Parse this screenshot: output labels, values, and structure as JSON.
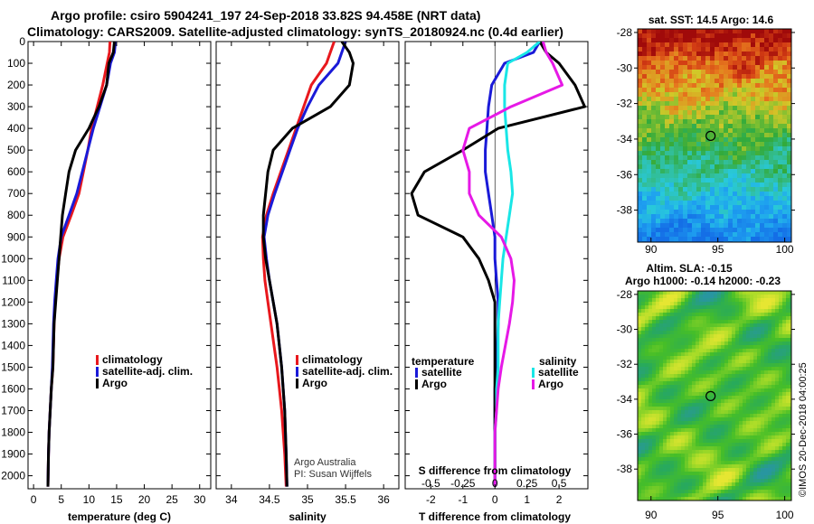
{
  "title": {
    "line1": "Argo profile: csiro 5904241_197 24-Sep-2018 33.82S 94.458E (NRT data)",
    "line2": "Climatology: CARS2009. Satellite-adjusted climatology: synTS_20180924.nc (0.4d earlier)"
  },
  "colors": {
    "climatology": "#e8181d",
    "satellite": "#1a1ad8",
    "argo": "#000000",
    "sat_salinity": "#19e6e6",
    "argo_salinity": "#e619e6"
  },
  "credit": {
    "line1": "Argo Australia",
    "line2": "PI: Susan Wijffels"
  },
  "watermark": "©IMOS 20-Dec-2018 04:00:25",
  "chart_data": [
    {
      "type": "line",
      "name": "temperature",
      "xlabel": "temperature (deg C)",
      "xlim": [
        -1,
        32
      ],
      "ylim": [
        2060,
        0
      ],
      "ylabel": "",
      "xticks": [
        0,
        5,
        10,
        15,
        20,
        25,
        30
      ],
      "yticks": [
        0,
        100,
        200,
        300,
        400,
        500,
        600,
        700,
        800,
        900,
        1000,
        1100,
        1200,
        1300,
        1400,
        1500,
        1600,
        1700,
        1800,
        1900,
        2000
      ],
      "legend": [
        "climatology",
        "satellite-adj. clim.",
        "Argo"
      ],
      "series": [
        {
          "name": "climatology",
          "color": "#e8181d",
          "x": [
            13.8,
            13.7,
            13.3,
            12.5,
            11.5,
            10.5,
            9.8,
            9.0,
            8.2,
            6.8,
            5.3,
            4.6,
            4.2,
            3.9,
            3.7,
            3.5,
            3.2,
            3.0,
            2.8,
            2.7,
            2.6
          ],
          "depth": [
            0,
            50,
            100,
            200,
            300,
            400,
            500,
            600,
            700,
            800,
            900,
            1000,
            1100,
            1200,
            1300,
            1500,
            1600,
            1700,
            1800,
            1900,
            2050
          ]
        },
        {
          "name": "satellite-adj. clim.",
          "color": "#1a1ad8",
          "x": [
            14.8,
            14.6,
            13.9,
            13.2,
            12.0,
            10.8,
            9.8,
            8.8,
            7.8,
            6.4,
            5.0,
            4.4,
            4.1,
            3.8,
            3.6,
            3.4,
            3.2,
            3.0,
            2.8,
            2.7,
            2.6
          ],
          "depth": [
            0,
            50,
            100,
            200,
            300,
            400,
            500,
            600,
            700,
            800,
            900,
            1000,
            1100,
            1200,
            1300,
            1500,
            1600,
            1700,
            1800,
            1900,
            2050
          ]
        },
        {
          "name": "Argo",
          "color": "#000000",
          "x": [
            14.6,
            14.4,
            13.6,
            13.2,
            11.8,
            10.0,
            7.6,
            6.4,
            5.8,
            5.2,
            4.9,
            4.6,
            4.3,
            4.0,
            3.7,
            3.5,
            3.2,
            3.0,
            2.8,
            2.7,
            2.6
          ],
          "depth": [
            0,
            50,
            100,
            200,
            300,
            400,
            500,
            600,
            700,
            800,
            900,
            1000,
            1100,
            1200,
            1300,
            1500,
            1600,
            1700,
            1800,
            1900,
            2050
          ]
        }
      ]
    },
    {
      "type": "line",
      "name": "salinity",
      "xlabel": "salinity",
      "xlim": [
        33.8,
        36.2
      ],
      "ylim": [
        2060,
        0
      ],
      "xticks": [
        34,
        34.5,
        35,
        35.5,
        36
      ],
      "xticklabels": [
        "34",
        "34.5",
        "35",
        "35.5",
        "36"
      ],
      "legend": [
        "climatology",
        "satellite-adj. clim.",
        "Argo"
      ],
      "series": [
        {
          "name": "climatology",
          "color": "#e8181d",
          "x": [
            35.35,
            35.3,
            35.25,
            35.05,
            34.95,
            34.85,
            34.75,
            34.65,
            34.55,
            34.46,
            34.41,
            34.42,
            34.44,
            34.48,
            34.52,
            34.6,
            34.63,
            34.66,
            34.68,
            34.7,
            34.72
          ],
          "depth": [
            0,
            50,
            100,
            200,
            300,
            400,
            500,
            600,
            700,
            800,
            900,
            1000,
            1100,
            1200,
            1300,
            1500,
            1600,
            1700,
            1800,
            1900,
            2050
          ]
        },
        {
          "name": "satellite-adj. clim.",
          "color": "#1a1ad8",
          "x": [
            35.5,
            35.45,
            35.4,
            35.15,
            35.0,
            34.87,
            34.77,
            34.67,
            34.57,
            34.48,
            34.43,
            34.46,
            34.5,
            34.55,
            34.6,
            34.66,
            34.68,
            34.7,
            34.71,
            34.72,
            34.73
          ],
          "depth": [
            0,
            50,
            100,
            200,
            300,
            400,
            500,
            600,
            700,
            800,
            900,
            1000,
            1100,
            1200,
            1300,
            1500,
            1600,
            1700,
            1800,
            1900,
            2050
          ]
        },
        {
          "name": "Argo",
          "color": "#000000",
          "x": [
            35.45,
            35.55,
            35.6,
            35.55,
            35.3,
            34.8,
            34.55,
            34.48,
            34.45,
            34.42,
            34.42,
            34.45,
            34.5,
            34.55,
            34.6,
            34.66,
            34.68,
            34.7,
            34.71,
            34.72,
            34.73
          ],
          "depth": [
            0,
            50,
            100,
            200,
            300,
            400,
            500,
            600,
            700,
            800,
            900,
            1000,
            1100,
            1200,
            1300,
            1500,
            1600,
            1700,
            1800,
            1900,
            2050
          ]
        }
      ]
    },
    {
      "type": "line",
      "name": "difference",
      "xlabel": "T difference from climatology",
      "xlabel_top": "S difference from climatology",
      "xlim": [
        -2.8,
        2.9
      ],
      "ylim": [
        2060,
        0
      ],
      "xticks": [
        -2,
        -1,
        0,
        1,
        2
      ],
      "s_ticks": [
        -0.5,
        -0.25,
        0,
        0.25,
        0.5
      ],
      "s_ticklabels": [
        "-0.5",
        "-0.25",
        "0",
        "0.25",
        "0.5"
      ],
      "s_scale": 4,
      "legend_group_left": {
        "title": "temperature",
        "items": [
          "satellite",
          "Argo"
        ]
      },
      "legend_group_right": {
        "title": "salinity",
        "items": [
          "satellite",
          "Argo"
        ]
      },
      "series": [
        {
          "name": "T satellite",
          "color": "#1a1ad8",
          "x": [
            1.4,
            1.2,
            0.3,
            -0.1,
            -0.2,
            -0.25,
            -0.3,
            -0.3,
            -0.2,
            -0.1,
            0.0,
            0.0,
            0.05,
            0.1,
            0.1,
            0.05,
            0.0,
            0.0,
            0.0,
            0.0,
            0.0
          ],
          "depth": [
            0,
            50,
            100,
            200,
            300,
            400,
            500,
            600,
            700,
            800,
            900,
            1000,
            1100,
            1200,
            1300,
            1500,
            1600,
            1700,
            1800,
            1900,
            2050
          ]
        },
        {
          "name": "T Argo",
          "color": "#000000",
          "x": [
            1.4,
            1.6,
            2.0,
            2.5,
            2.8,
            0.1,
            -1.0,
            -2.2,
            -2.6,
            -2.4,
            -1.0,
            -0.5,
            -0.2,
            0.0,
            0.0,
            0.0,
            0.0,
            0.0,
            0.0,
            0.0,
            0.0
          ],
          "depth": [
            0,
            50,
            100,
            200,
            300,
            400,
            500,
            600,
            700,
            800,
            900,
            1000,
            1100,
            1200,
            1300,
            1500,
            1600,
            1700,
            1800,
            1900,
            2050
          ]
        },
        {
          "name": "S satellite",
          "color": "#19e6e6",
          "x": [
            1.4,
            1.0,
            0.4,
            0.3,
            0.3,
            0.35,
            0.4,
            0.5,
            0.55,
            0.45,
            0.35,
            0.25,
            0.2,
            0.15,
            0.1,
            0.1,
            0.05,
            0.05,
            0.0,
            0.0,
            0.0
          ],
          "depth": [
            0,
            50,
            100,
            200,
            300,
            400,
            500,
            600,
            700,
            800,
            900,
            1000,
            1100,
            1200,
            1300,
            1500,
            1600,
            1700,
            1800,
            1900,
            2050
          ]
        },
        {
          "name": "S Argo",
          "color": "#e619e6",
          "x": [
            1.5,
            1.6,
            1.8,
            2.1,
            0.5,
            -0.8,
            -1.0,
            -0.8,
            -0.8,
            -0.5,
            0.2,
            0.5,
            0.6,
            0.55,
            0.45,
            0.2,
            0.1,
            0.05,
            0.0,
            0.0,
            0.0
          ],
          "depth": [
            0,
            50,
            100,
            200,
            300,
            400,
            500,
            600,
            700,
            800,
            900,
            1000,
            1100,
            1200,
            1300,
            1500,
            1600,
            1700,
            1800,
            1900,
            2050
          ]
        }
      ]
    },
    {
      "type": "heatmap",
      "name": "sst-map",
      "title": "sat. SST: 14.5 Argo: 14.6",
      "xticks": [
        90,
        95,
        100
      ],
      "yticks": [
        -28,
        -30,
        -32,
        -34,
        -36,
        -38
      ],
      "xlim": [
        89,
        100.5
      ],
      "ylim": [
        -27.8,
        -39.8
      ],
      "marker": {
        "lon": 94.458,
        "lat": -33.82
      }
    },
    {
      "type": "heatmap",
      "name": "sla-map",
      "title": "Altim. SLA: -0.15",
      "subtitle": "Argo h1000: -0.14 h2000: -0.23",
      "xticks": [
        90,
        95,
        100
      ],
      "yticks": [
        -28,
        -30,
        -32,
        -34,
        -36,
        -38
      ],
      "xlim": [
        89,
        100.5
      ],
      "ylim": [
        -27.8,
        -39.8
      ],
      "marker": {
        "lon": 94.458,
        "lat": -33.82
      }
    }
  ]
}
